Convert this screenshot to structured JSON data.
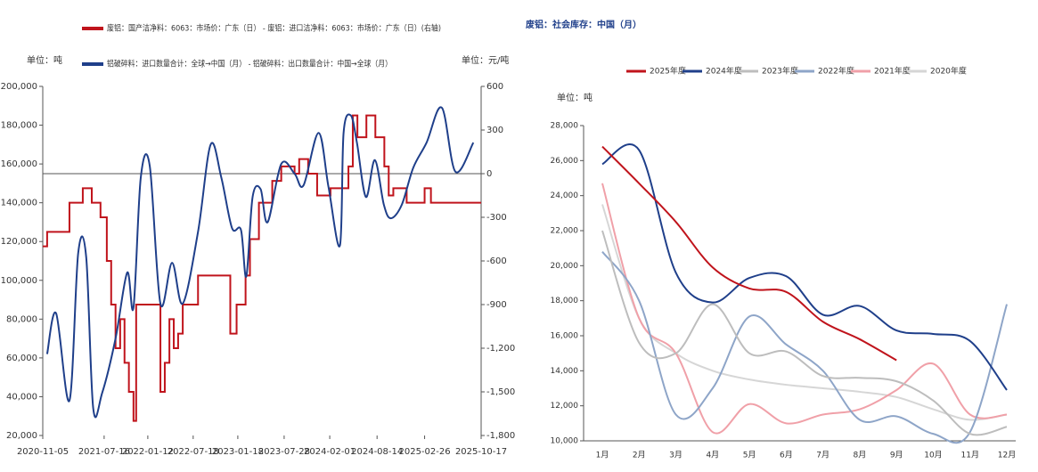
{
  "chart_data": [
    {
      "type": "line",
      "y_unit": "单位：吨",
      "y2_unit": "单位：元/吨",
      "xlim": [
        "2020-11-05",
        "2025-10-17"
      ],
      "xticks": [
        "2020-11-05",
        "2021-07-16",
        "2022-01-12",
        "2022-07-18",
        "2023-01-18",
        "2023-07-28",
        "2024-02-01",
        "2024-08-14",
        "2025-02-26",
        "2025-10-17"
      ],
      "ylim": [
        20000,
        200000
      ],
      "yticks": [
        {
          "value": 200000,
          "label": "200,000"
        },
        {
          "value": 180000,
          "label": "180,000"
        },
        {
          "value": 160000,
          "label": "160,000"
        },
        {
          "value": 140000,
          "label": "140,000"
        },
        {
          "value": 120000,
          "label": "120,000"
        },
        {
          "value": 100000,
          "label": "100,000"
        },
        {
          "value": 80000,
          "label": "80,000"
        },
        {
          "value": 60000,
          "label": "60,000"
        },
        {
          "value": 40000,
          "label": "40,000"
        },
        {
          "value": 20000,
          "label": "20,000"
        }
      ],
      "y2lim": [
        -1800,
        600
      ],
      "y2ticks": [
        600,
        300,
        0,
        -300,
        -600,
        -900,
        {
          "value": -1200,
          "label": "-1,200"
        },
        {
          "value": -1500,
          "label": "-1,500"
        },
        {
          "value": -1800,
          "label": "-1,800"
        }
      ],
      "grid": false,
      "series": [
        {
          "name": "废铝：国产洁净料：6063：市场价：广东（日） - 废铝：进口洁净料：6063：市场价：广东（日）(右轴)",
          "color": "#c0141c",
          "axis": "y2",
          "style": "step",
          "x": [
            "2020-11-05",
            "2020-11-23",
            "2021-02-23",
            "2021-04-19",
            "2021-05-26",
            "2021-07-01",
            "2021-07-27",
            "2021-08-14",
            "2021-09-01",
            "2021-09-20",
            "2021-10-08",
            "2021-10-26",
            "2021-11-14",
            "2021-11-25",
            "2022-03-05",
            "2022-03-23",
            "2022-04-11",
            "2022-04-29",
            "2022-05-17",
            "2022-06-05",
            "2022-08-07",
            "2022-12-18",
            "2023-01-13",
            "2023-02-19",
            "2023-03-09",
            "2023-04-15",
            "2023-06-09",
            "2023-07-16",
            "2023-09-09",
            "2023-09-28",
            "2023-11-04",
            "2023-12-11",
            "2024-02-04",
            "2024-04-18",
            "2024-05-06",
            "2024-05-25",
            "2024-07-01",
            "2024-08-07",
            "2024-09-13",
            "2024-10-01",
            "2024-10-20",
            "2024-12-14",
            "2025-02-26",
            "2025-03-24",
            "2025-10-17"
          ],
          "values": [
            -500,
            -400,
            -200,
            -100,
            -200,
            -300,
            -600,
            -900,
            -1200,
            -1000,
            -1300,
            -1500,
            -1700,
            -900,
            -1500,
            -1300,
            -1000,
            -1200,
            -1100,
            -900,
            -700,
            -1100,
            -900,
            -700,
            -450,
            -200,
            -50,
            50,
            0,
            100,
            0,
            -150,
            -100,
            50,
            400,
            250,
            400,
            250,
            50,
            -150,
            -100,
            -200,
            -100,
            -200,
            -200
          ]
        },
        {
          "name": "铝破碎料：进口数量合计：全球→中国（月） - 铝破碎料：出口数量合计：中国→全球（月）",
          "color": "#1f3f8a",
          "style": "smooth",
          "x": [
            "2020-11-23",
            "2020-12-30",
            "2021-02-23",
            "2021-03-31",
            "2021-05-03",
            "2021-06-01",
            "2021-07-08",
            "2021-09-01",
            "2021-10-19",
            "2021-11-14",
            "2021-12-14",
            "2022-01-20",
            "2022-03-05",
            "2022-04-22",
            "2022-06-05",
            "2022-08-07",
            "2022-09-28",
            "2022-11-11",
            "2022-12-25",
            "2023-01-31",
            "2023-02-22",
            "2023-03-20",
            "2023-04-22",
            "2023-05-21",
            "2023-07-16",
            "2023-09-09",
            "2023-10-16",
            "2023-12-17",
            "2024-01-27",
            "2024-03-14",
            "2024-03-29",
            "2024-04-28",
            "2024-05-23",
            "2024-06-29",
            "2024-08-05",
            "2024-09-11",
            "2024-10-10",
            "2024-11-24",
            "2025-01-10",
            "2025-03-06",
            "2025-05-08",
            "2025-07-03",
            "2025-09-15"
          ],
          "values": [
            62000,
            83000,
            38000,
            114000,
            112000,
            34000,
            42000,
            70000,
            104000,
            86000,
            153000,
            159000,
            88000,
            109000,
            88000,
            125000,
            170000,
            153000,
            127000,
            126000,
            102000,
            143000,
            147000,
            130000,
            160000,
            155000,
            149000,
            176000,
            148000,
            118000,
            176000,
            185000,
            171000,
            143000,
            162000,
            139000,
            132000,
            139000,
            158000,
            171000,
            189000,
            156000,
            171000
          ]
        }
      ]
    },
    {
      "type": "line",
      "title": "废铝：社会库存：中国（月）",
      "y_unit": "单位：吨",
      "categories": [
        "1月",
        "2月",
        "3月",
        "4月",
        "5月",
        "6月",
        "7月",
        "8月",
        "9月",
        "10月",
        "11月",
        "12月"
      ],
      "ylim": [
        10000,
        28000
      ],
      "yticks": [
        {
          "value": 10000,
          "label": "10,000"
        },
        {
          "value": 12000,
          "label": "12,000"
        },
        {
          "value": 14000,
          "label": "14,000"
        },
        {
          "value": 16000,
          "label": "16,000"
        },
        {
          "value": 18000,
          "label": "18,000"
        },
        {
          "value": 20000,
          "label": "20,000"
        },
        {
          "value": 22000,
          "label": "22,000"
        },
        {
          "value": 24000,
          "label": "24,000"
        },
        {
          "value": 26000,
          "label": "26,000"
        },
        {
          "value": 28000,
          "label": "28,000"
        }
      ],
      "grid": false,
      "series": [
        {
          "name": "2025年度",
          "color": "#c0141c",
          "style": "smooth",
          "values": [
            26800,
            24700,
            22500,
            19900,
            18700,
            18500,
            16800,
            15800,
            14600,
            null,
            null,
            null
          ]
        },
        {
          "name": "2024年度",
          "color": "#1f3f8a",
          "style": "smooth",
          "values": [
            25800,
            26600,
            19600,
            17900,
            19300,
            19400,
            17200,
            17700,
            16300,
            16100,
            15700,
            12900
          ]
        },
        {
          "name": "2023年度",
          "color": "#bdbdbd",
          "style": "smooth",
          "values": [
            22000,
            15600,
            15000,
            17800,
            15000,
            15100,
            13700,
            13600,
            13400,
            12300,
            10400,
            10800
          ]
        },
        {
          "name": "2022年度",
          "color": "#8ea5c8",
          "style": "smooth",
          "values": [
            20800,
            18000,
            11500,
            13000,
            17100,
            15500,
            14000,
            11200,
            11400,
            10400,
            10500,
            17800
          ]
        },
        {
          "name": "2021年度",
          "color": "#f0a0a8",
          "style": "smooth",
          "values": [
            24700,
            17000,
            15000,
            10500,
            12100,
            11000,
            11500,
            11800,
            12900,
            14400,
            11500,
            11500
          ]
        },
        {
          "name": "2020年度",
          "color": "#d6d6d6",
          "style": "smooth",
          "values": [
            23500,
            17000,
            15000,
            14000,
            13500,
            13200,
            13000,
            12800,
            12500,
            11800,
            11200,
            11500
          ]
        }
      ]
    }
  ]
}
